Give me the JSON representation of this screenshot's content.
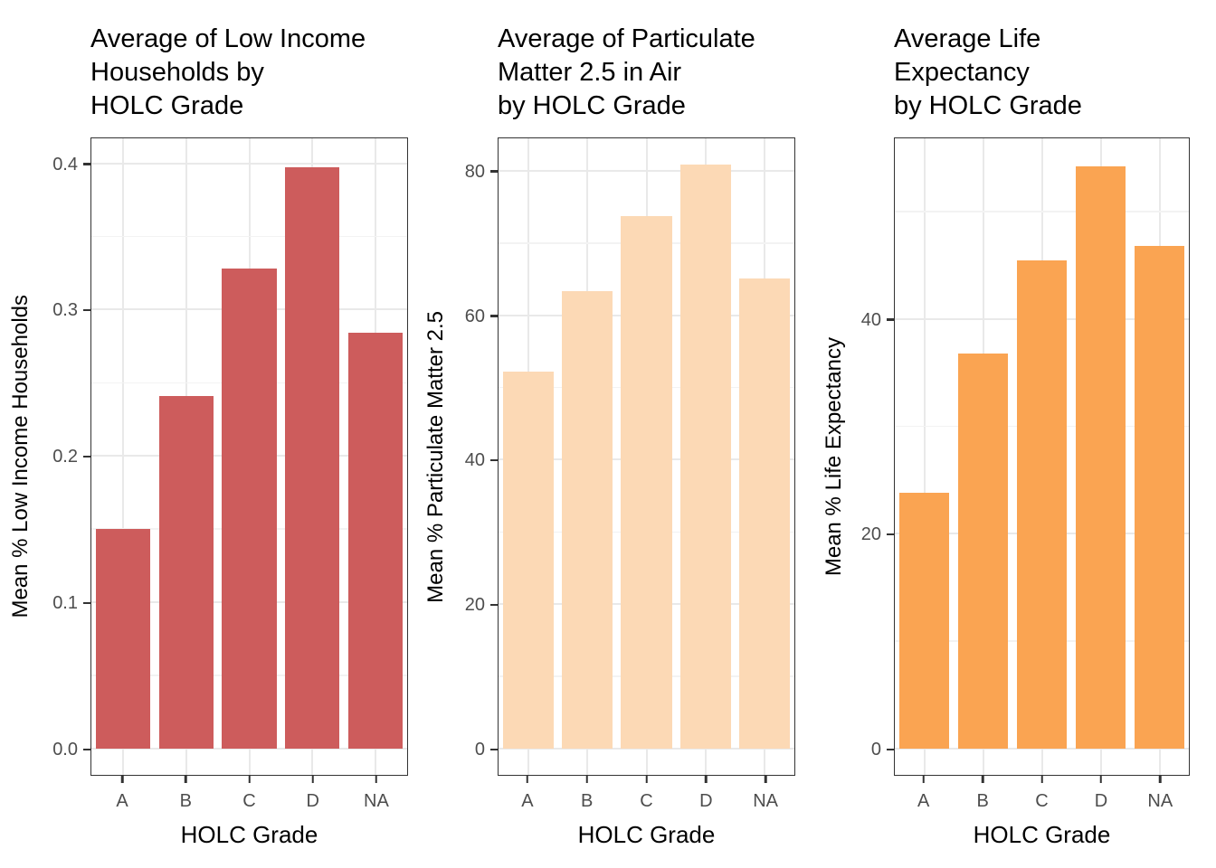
{
  "page": {
    "background": "#ffffff"
  },
  "chart_data": [
    {
      "type": "bar",
      "title": "Average of Low Income\nHouseholds by\nHOLC Grade",
      "xlabel": "HOLC Grade",
      "ylabel": "Mean % Low Income Households",
      "categories": [
        "A",
        "B",
        "C",
        "D",
        "NA"
      ],
      "values": [
        0.15,
        0.241,
        0.328,
        0.397,
        0.284
      ],
      "bar_color": "#CD5C5C",
      "ylim": [
        0,
        0.417
      ],
      "yticks": [
        0,
        0.1,
        0.2,
        0.3,
        0.4
      ],
      "ytick_labels": [
        "0.0",
        "0.1",
        "0.2",
        "0.3",
        "0.4"
      ],
      "minor_ticks": [
        0.05,
        0.15,
        0.25,
        0.35
      ],
      "grid": true,
      "legend": "none"
    },
    {
      "type": "bar",
      "title": "Average of Particulate\nMatter 2.5 in Air\nby HOLC Grade",
      "xlabel": "HOLC Grade",
      "ylabel": "Mean % Particulate Matter 2.5",
      "categories": [
        "A",
        "B",
        "C",
        "D",
        "NA"
      ],
      "values": [
        52.2,
        63.4,
        73.7,
        80.9,
        65.1
      ],
      "bar_color": "#FCD9B5",
      "ylim": [
        0,
        84.5
      ],
      "yticks": [
        0,
        20,
        40,
        60,
        80
      ],
      "ytick_labels": [
        "0",
        "20",
        "40",
        "60",
        "80"
      ],
      "minor_ticks": [
        10,
        30,
        50,
        70
      ],
      "grid": true,
      "legend": "none"
    },
    {
      "type": "bar",
      "title": "Average Life\nExpectancy\nby HOLC Grade",
      "xlabel": "HOLC Grade",
      "ylabel": "Mean % Life Expectancy",
      "categories": [
        "A",
        "B",
        "C",
        "D",
        "NA"
      ],
      "values": [
        23.8,
        36.8,
        45.4,
        54.2,
        46.8
      ],
      "bar_color": "#FAA452",
      "ylim": [
        0,
        56.8
      ],
      "yticks": [
        0,
        20,
        40
      ],
      "ytick_labels": [
        "0",
        "20",
        "40"
      ],
      "minor_ticks": [
        10,
        30,
        50
      ],
      "grid": true,
      "legend": "none"
    }
  ]
}
